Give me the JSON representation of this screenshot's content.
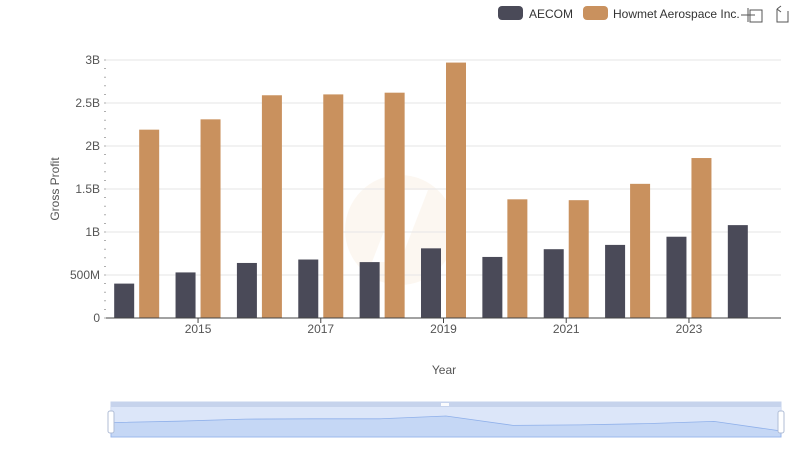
{
  "colors": {
    "aecom": "#4a4a58",
    "howmet": "#c9915e",
    "grid": "#e6e6e6",
    "axis": "#444444",
    "text": "#555555",
    "slider_fill": "#d6e2f8",
    "slider_line": "#8fb0ea",
    "slider_border": "#c6d3ec"
  },
  "legend": {
    "items": [
      {
        "label": "AECOM",
        "color": "#4a4a58"
      },
      {
        "label": "Howmet Aerospace Inc.",
        "color": "#c9915e"
      }
    ]
  },
  "toolbar": {
    "icons": [
      "zoom-select-icon",
      "zoom-reset-icon"
    ]
  },
  "chart_data": {
    "type": "bar",
    "categories": [
      "2014",
      "2015",
      "2016",
      "2017",
      "2018",
      "2019",
      "2020",
      "2021",
      "2022",
      "2023",
      "2024"
    ],
    "x_tick_labels": [
      "2015",
      "2017",
      "2019",
      "2021",
      "2023"
    ],
    "series": [
      {
        "name": "AECOM",
        "values": [
          400000000,
          530000000,
          640000000,
          680000000,
          650000000,
          810000000,
          710000000,
          800000000,
          850000000,
          945000000,
          1080000000
        ]
      },
      {
        "name": "Howmet Aerospace Inc.",
        "values": [
          2190000000,
          2310000000,
          2590000000,
          2600000000,
          2620000000,
          2970000000,
          1380000000,
          1370000000,
          1560000000,
          1860000000,
          null
        ]
      }
    ],
    "ylabel": "Gross Profit",
    "xlabel": "Year",
    "ylim": [
      0,
      3000000000
    ],
    "y_ticks": [
      0,
      500000000,
      1000000000,
      1500000000,
      2000000000,
      2500000000,
      3000000000
    ],
    "y_tick_labels": [
      "0",
      "500M",
      "1B",
      "1.5B",
      "2B",
      "2.5B",
      "3B"
    ],
    "grid": true,
    "legend_position": "top-right"
  },
  "datazoom": {
    "range": [
      0,
      100
    ]
  }
}
